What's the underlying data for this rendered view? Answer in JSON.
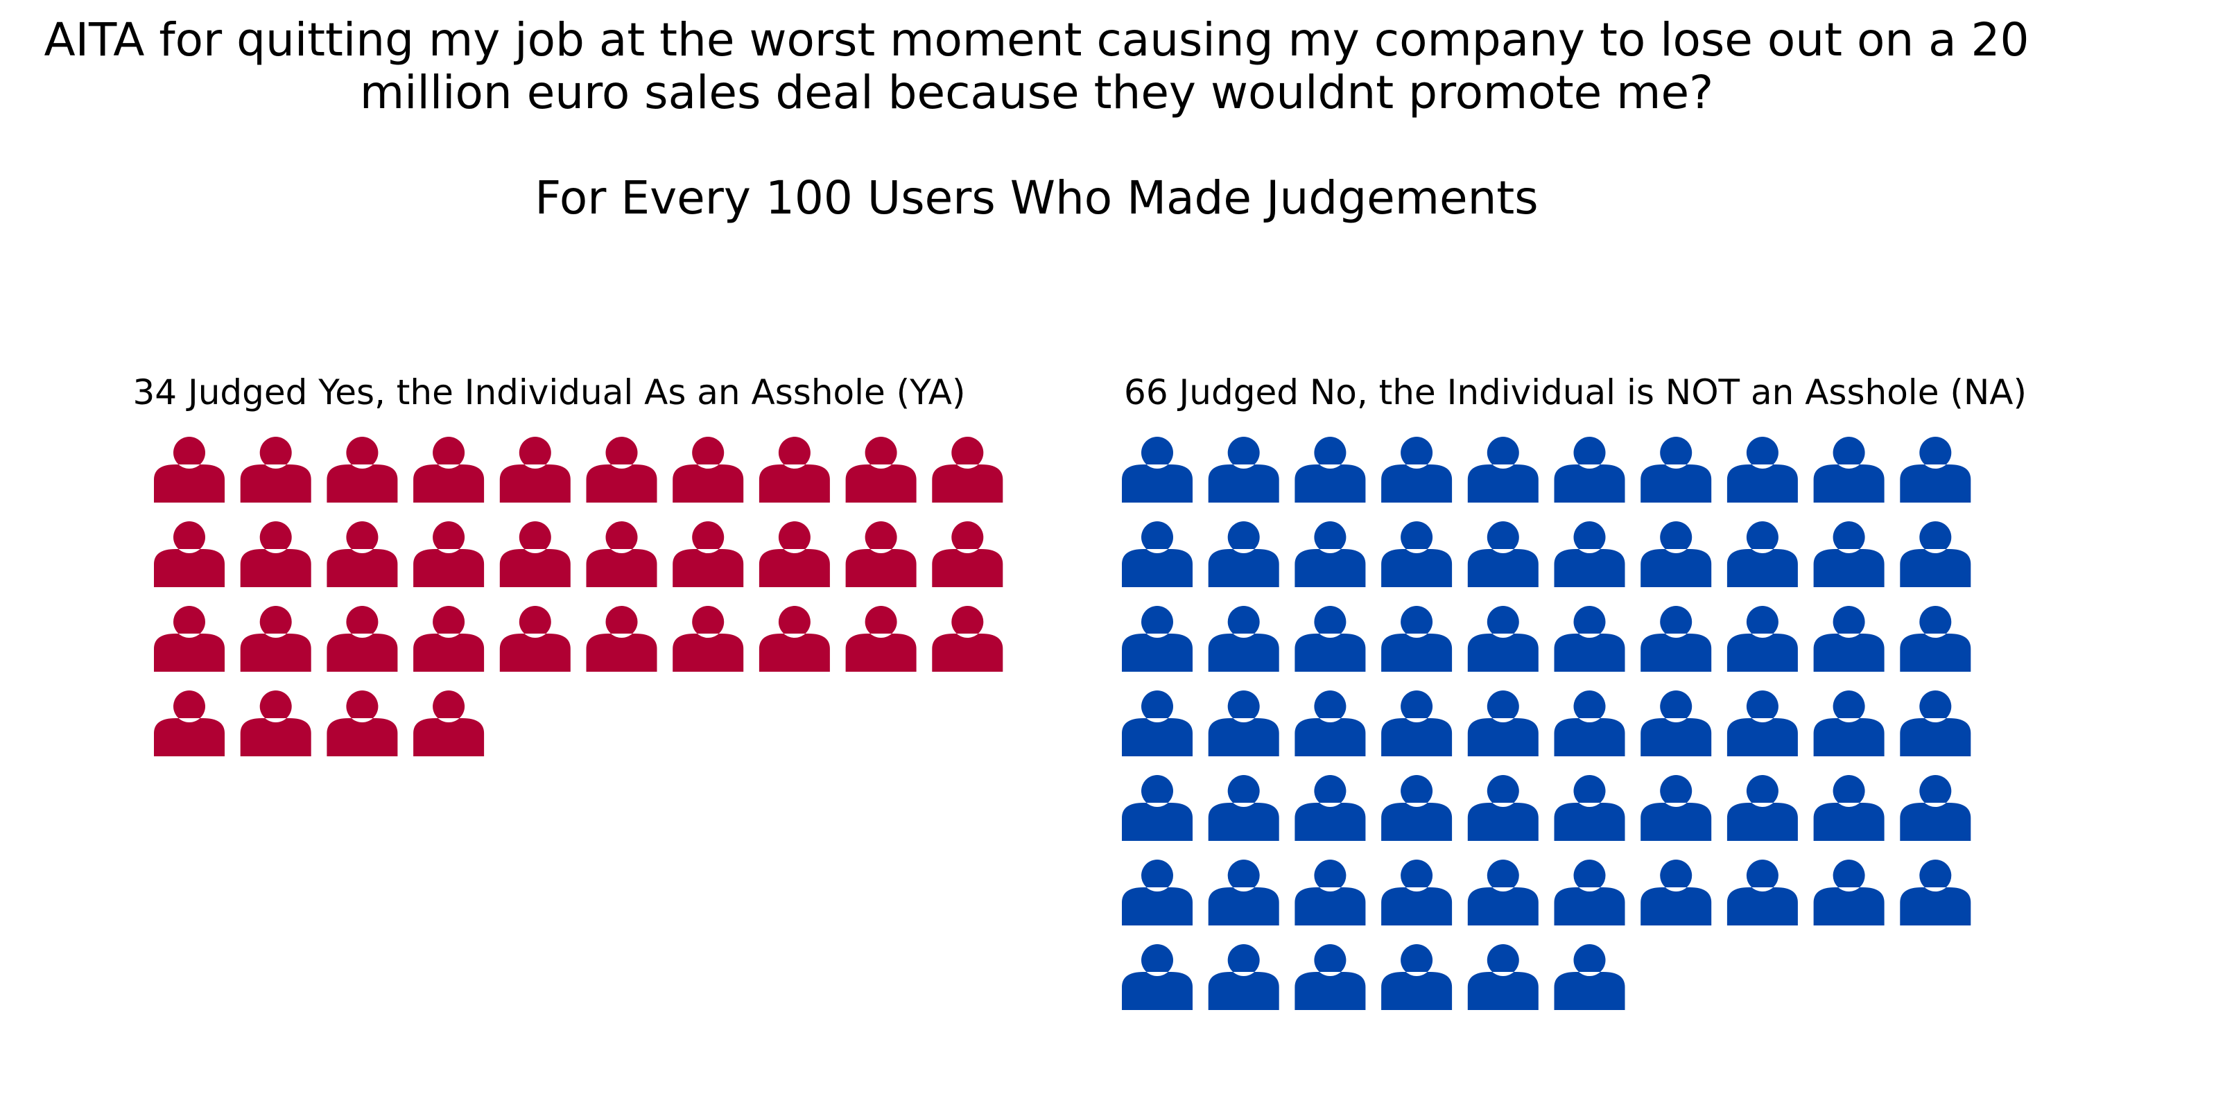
{
  "title": "AITA for quitting my job at the worst moment causing my company to lose out on a 20 million euro sales deal because they wouldnt promote me?",
  "subtitle": "For Every 100 Users Who Made Judgements",
  "colors": {
    "ya": "#b00033",
    "na": "#0044aa"
  },
  "chart_data": {
    "type": "pictograph",
    "title": "AITA for quitting my job at the worst moment causing my company to lose out on a 20 million euro sales deal because they wouldnt promote me?",
    "subtitle": "For Every 100 Users Who Made Judgements",
    "icons_per_row": 10,
    "icon": "person-icon",
    "series": [
      {
        "name": "34 Judged Yes, the Individual As an Asshole (YA)",
        "value": 34,
        "color": "#b00033"
      },
      {
        "name": "66 Judged No, the Individual is NOT an Asshole (NA)",
        "value": 66,
        "color": "#0044aa"
      }
    ]
  }
}
